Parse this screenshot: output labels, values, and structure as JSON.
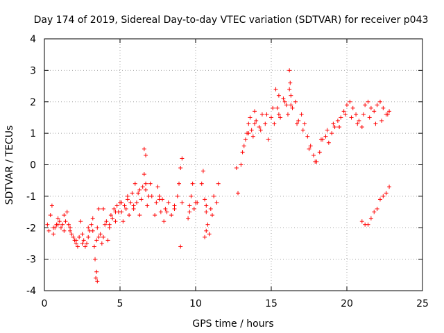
{
  "chart_data": {
    "type": "scatter",
    "title": "Day 174 of 2019, Sidereal Day-to-day VTEC variation (SDTVAR) for receiver p043",
    "xlabel": "GPS time / hours",
    "ylabel": "SDTVAR / TECUs",
    "xlim": [
      0,
      25
    ],
    "ylim": [
      -4,
      4
    ],
    "xticks": [
      "0",
      "5",
      "10",
      "15",
      "20",
      "25"
    ],
    "yticks": [
      "-4",
      "-3",
      "-2",
      "-1",
      "0",
      "1",
      "2",
      "3",
      "4"
    ],
    "grid": true,
    "marker": "plus",
    "color": "#ff0000",
    "series": [
      {
        "name": "SDTVAR",
        "x": [
          0.2,
          0.3,
          0.4,
          0.5,
          0.6,
          0.7,
          0.8,
          0.9,
          1.0,
          1.1,
          1.2,
          1.3,
          1.4,
          1.5,
          1.6,
          1.7,
          1.8,
          1.9,
          2.0,
          2.1,
          2.2,
          2.3,
          2.4,
          2.5,
          2.6,
          2.7,
          2.8,
          2.9,
          3.0,
          3.1,
          3.2,
          3.3,
          3.35,
          3.4,
          3.45,
          3.5,
          3.6,
          3.7,
          3.8,
          3.9,
          4.0,
          4.1,
          4.2,
          4.3,
          4.4,
          4.5,
          4.6,
          4.7,
          4.8,
          4.9,
          5.0,
          5.1,
          5.2,
          5.3,
          5.4,
          5.5,
          5.6,
          5.7,
          5.8,
          5.9,
          6.0,
          6.1,
          6.2,
          6.3,
          6.4,
          6.5,
          6.6,
          6.7,
          6.8,
          6.9,
          7.0,
          7.3,
          7.4,
          7.5,
          7.6,
          7.7,
          7.8,
          7.9,
          8.0,
          8.2,
          8.4,
          8.6,
          8.8,
          8.9,
          9.0,
          9.1,
          9.5,
          9.6,
          9.7,
          9.8,
          9.9,
          10.0,
          10.4,
          10.5,
          10.6,
          10.7,
          10.8,
          10.9,
          11.0,
          11.1,
          11.4,
          11.5,
          12.7,
          12.8,
          13.0,
          13.1,
          13.2,
          13.3,
          13.4,
          13.5,
          13.6,
          13.7,
          13.8,
          13.9,
          14.0,
          14.2,
          14.4,
          14.6,
          14.8,
          15.0,
          15.2,
          15.4,
          15.6,
          15.8,
          16.0,
          16.1,
          16.2,
          16.3,
          16.4,
          16.6,
          16.8,
          17.0,
          17.2,
          17.4,
          17.6,
          17.8,
          18.0,
          18.2,
          18.4,
          18.6,
          18.8,
          19.0,
          19.2,
          19.4,
          19.6,
          19.8,
          20.0,
          20.2,
          20.4,
          20.6,
          20.8,
          21.0,
          21.2,
          21.4,
          21.6,
          21.8,
          22.0,
          22.2,
          22.4,
          22.6,
          22.8,
          0.6,
          0.9,
          1.3,
          1.7,
          2.1,
          2.5,
          2.9,
          3.2,
          3.6,
          3.9,
          4.3,
          4.7,
          5.1,
          5.5,
          5.9,
          6.3,
          6.7,
          7.1,
          7.6,
          8.1,
          8.6,
          9.1,
          9.6,
          10.1,
          10.7,
          11.2,
          13.5,
          13.9,
          14.3,
          14.7,
          15.1,
          15.5,
          15.9,
          16.3,
          16.7,
          17.1,
          17.5,
          17.9,
          18.3,
          18.7,
          19.1,
          19.5,
          19.9,
          20.3,
          20.7,
          21.1,
          21.5,
          21.9,
          22.3,
          22.7,
          21.0,
          21.2,
          21.4,
          21.6,
          21.8,
          22.0,
          22.2,
          22.4,
          22.6,
          22.8,
          6.6,
          6.7,
          16.2,
          16.25,
          15.3,
          15.5,
          3.5,
          3.45,
          9.0,
          10.7,
          10.6
        ],
        "y": [
          -1.9,
          -2.1,
          -1.6,
          -1.3,
          -2.2,
          -2.0,
          -1.9,
          -1.7,
          -1.8,
          -2.0,
          -1.9,
          -1.6,
          -1.8,
          -1.5,
          -1.9,
          -2.1,
          -2.2,
          -2.3,
          -2.4,
          -2.5,
          -2.6,
          -2.3,
          -1.8,
          -2.2,
          -2.4,
          -2.6,
          -2.5,
          -2.3,
          -2.1,
          -1.9,
          -1.7,
          -2.6,
          -3.0,
          -3.6,
          -2.4,
          -2.0,
          -1.4,
          -2.2,
          -2.5,
          -2.3,
          -1.9,
          -1.8,
          -2.4,
          -2.0,
          -1.6,
          -1.7,
          -1.4,
          -1.8,
          -1.3,
          -1.5,
          -1.2,
          -1.5,
          -1.8,
          -1.3,
          -1.4,
          -1.0,
          -1.6,
          -1.2,
          -0.9,
          -1.4,
          -0.6,
          -1.2,
          -0.9,
          -1.6,
          -1.1,
          -0.7,
          -0.3,
          -0.8,
          -1.3,
          -1.0,
          -0.6,
          -1.6,
          -1.2,
          -0.7,
          -1.0,
          -1.5,
          -1.1,
          -1.8,
          -1.4,
          -1.2,
          -1.6,
          -1.3,
          -1.0,
          -0.6,
          -0.1,
          0.2,
          -1.7,
          -1.3,
          -1.0,
          -0.6,
          -1.4,
          -1.2,
          -0.6,
          -0.2,
          -1.1,
          -1.5,
          -1.9,
          -2.2,
          -1.4,
          -1.6,
          -1.2,
          -0.6,
          -0.1,
          -0.9,
          0.0,
          0.4,
          0.6,
          0.8,
          1.0,
          1.3,
          1.5,
          1.1,
          0.9,
          1.7,
          1.4,
          1.2,
          1.6,
          1.3,
          0.8,
          1.5,
          1.3,
          1.8,
          1.5,
          2.1,
          1.9,
          1.6,
          2.4,
          2.2,
          1.8,
          2.0,
          1.4,
          1.6,
          1.3,
          0.9,
          0.6,
          0.3,
          0.1,
          0.4,
          0.8,
          0.9,
          0.7,
          1.0,
          1.2,
          1.4,
          1.5,
          1.7,
          1.9,
          2.0,
          1.8,
          1.6,
          1.4,
          1.2,
          1.9,
          2.0,
          1.8,
          1.7,
          1.9,
          2.0,
          1.8,
          1.6,
          1.7,
          -2.0,
          -1.9,
          -2.1,
          -2.0,
          -2.4,
          -2.5,
          -2.0,
          -2.1,
          -2.3,
          -1.4,
          -1.9,
          -1.5,
          -1.2,
          -1.1,
          -1.3,
          -0.8,
          -0.6,
          -1.0,
          -1.1,
          -1.5,
          -1.4,
          -1.2,
          -1.5,
          -1.2,
          -1.3,
          -1.0,
          1.0,
          1.3,
          1.1,
          1.6,
          1.8,
          1.6,
          2.0,
          1.9,
          1.3,
          1.1,
          0.5,
          0.1,
          0.8,
          1.1,
          1.3,
          1.2,
          1.6,
          1.5,
          1.3,
          1.6,
          1.5,
          1.3,
          1.4,
          1.6,
          -1.8,
          -1.9,
          -1.9,
          -1.7,
          -1.5,
          -1.4,
          -1.1,
          -1.0,
          -0.9,
          -0.7,
          0.5,
          0.3,
          3.0,
          2.6,
          2.4,
          2.2,
          -3.7,
          -3.4,
          -2.6,
          -2.1,
          -2.3
        ]
      }
    ]
  }
}
